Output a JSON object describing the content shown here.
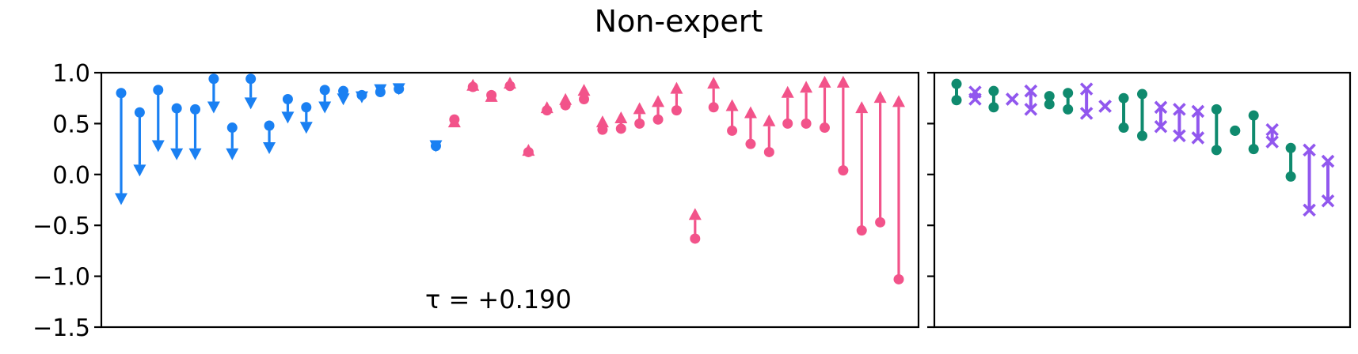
{
  "chart_data": {
    "type": "scatter",
    "title": "Non-expert",
    "ylim": [
      -1.5,
      1.0
    ],
    "yticks": [
      1.0,
      0.5,
      0.0,
      -0.5,
      -1.0,
      -1.5
    ],
    "ytick_labels": [
      "1.0",
      "0.5",
      "0.0",
      "−0.5",
      "−1.0",
      "−1.5"
    ],
    "grid": false,
    "colors": {
      "decrease": "#1a80f2",
      "increase": "#f2538a",
      "green": "#0f8a6e",
      "purple": "#9157ee"
    },
    "panels": [
      {
        "name": "left",
        "annotation": "τ = +0.190",
        "series": [
          {
            "kind": "arrow",
            "color_key": "decrease",
            "points": [
              [
                0.8,
                -0.3
              ],
              [
                0.61,
                -0.02
              ],
              [
                0.83,
                0.22
              ],
              [
                0.65,
                0.14
              ],
              [
                0.64,
                0.14
              ],
              [
                0.94,
                0.6
              ],
              [
                0.46,
                0.14
              ],
              [
                0.94,
                0.64
              ],
              [
                0.48,
                0.2
              ],
              [
                0.74,
                0.5
              ],
              [
                0.66,
                0.4
              ],
              [
                0.83,
                0.6
              ],
              [
                0.82,
                0.68
              ],
              [
                0.78,
                0.7
              ],
              [
                0.81,
                0.77
              ],
              [
                0.84,
                0.78
              ],
              null,
              [
                0.28,
                0.22
              ],
              null,
              null,
              null,
              null,
              null,
              null,
              null,
              null,
              null,
              null,
              null,
              null,
              null,
              null,
              null,
              null,
              null,
              null,
              null,
              null,
              null,
              null,
              null,
              null,
              null
            ]
          },
          {
            "kind": "arrow",
            "color_key": "increase",
            "points": [
              null,
              null,
              null,
              null,
              null,
              null,
              null,
              null,
              null,
              null,
              null,
              null,
              null,
              null,
              null,
              null,
              null,
              null,
              [
                0.54,
                0.58
              ],
              [
                0.86,
                0.94
              ],
              [
                0.78,
                0.83
              ],
              [
                0.87,
                0.96
              ],
              [
                0.22,
                0.3
              ],
              [
                0.63,
                0.72
              ],
              [
                0.68,
                0.8
              ],
              [
                0.74,
                0.89
              ],
              [
                0.44,
                0.58
              ],
              [
                0.45,
                0.62
              ],
              [
                0.5,
                0.71
              ],
              [
                0.54,
                0.78
              ],
              [
                0.63,
                0.91
              ],
              [
                -0.63,
                -0.33
              ],
              [
                0.66,
                0.96
              ],
              [
                0.43,
                0.74
              ],
              [
                0.3,
                0.67
              ],
              [
                0.22,
                0.59
              ],
              [
                0.5,
                0.87
              ],
              [
                0.5,
                0.92
              ],
              [
                0.46,
                0.97
              ],
              [
                0.04,
                0.97
              ],
              [
                -0.55,
                0.72
              ],
              [
                -0.47,
                0.82
              ],
              [
                -1.03,
                0.78
              ]
            ]
          }
        ]
      },
      {
        "name": "right",
        "series": [
          {
            "kind": "pair",
            "marker": "circle",
            "color_key": "green",
            "points": [
              [
                0.89,
                0.73
              ],
              null,
              [
                0.82,
                0.66
              ],
              null,
              null,
              [
                0.77,
                0.69
              ],
              [
                0.8,
                0.64
              ],
              null,
              null,
              [
                0.75,
                0.46
              ],
              [
                0.79,
                0.38
              ],
              null,
              null,
              null,
              [
                0.64,
                0.24
              ],
              [
                0.43,
                0.43
              ],
              [
                0.58,
                0.25
              ],
              null,
              [
                0.26,
                -0.02
              ],
              null,
              null
            ]
          },
          {
            "kind": "pair",
            "marker": "x",
            "color_key": "purple",
            "points": [
              null,
              [
                0.81,
                0.74
              ],
              null,
              [
                0.74,
                0.74
              ],
              [
                0.82,
                0.64
              ],
              null,
              null,
              [
                0.84,
                0.6
              ],
              [
                0.67,
                0.67
              ],
              null,
              null,
              [
                0.66,
                0.47
              ],
              [
                0.64,
                0.38
              ],
              [
                0.62,
                0.36
              ],
              null,
              null,
              null,
              [
                0.44,
                0.32
              ],
              null,
              [
                0.24,
                -0.35
              ],
              [
                0.13,
                -0.26
              ]
            ]
          }
        ]
      }
    ]
  }
}
